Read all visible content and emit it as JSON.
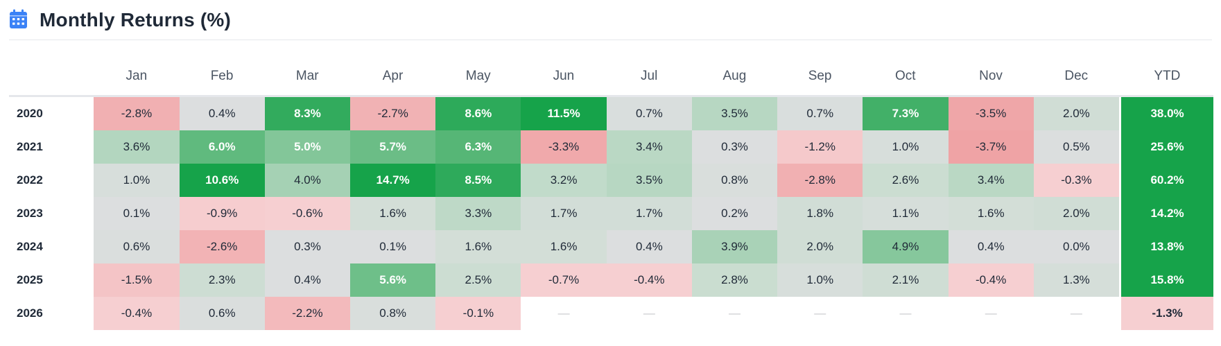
{
  "header": {
    "title": "Monthly Returns (%)",
    "icon": "calendar-icon",
    "icon_color": "#3b82f6"
  },
  "colors": {
    "green_strong": "#16a34a",
    "green_mid": "#4fb471",
    "green_light": "#c8ddcf",
    "neutral": "#dcdedf",
    "red_light": "#f6cfd1",
    "red_mid": "#ee9ea0",
    "text_dark": "#1f2937",
    "text_white": "#ffffff",
    "empty_mark": "—"
  },
  "chart_data": {
    "type": "heatmap",
    "title": "Monthly Returns (%)",
    "unit": "%",
    "columns": [
      "Jan",
      "Feb",
      "Mar",
      "Apr",
      "May",
      "Jun",
      "Jul",
      "Aug",
      "Sep",
      "Oct",
      "Nov",
      "Dec"
    ],
    "ytd_label": "YTD",
    "rows": [
      {
        "year": "2020",
        "values": [
          -2.8,
          0.4,
          8.3,
          -2.7,
          8.6,
          11.5,
          0.7,
          3.5,
          0.7,
          7.3,
          -3.5,
          2.0
        ],
        "ytd": 38.0
      },
      {
        "year": "2021",
        "values": [
          3.6,
          6.0,
          5.0,
          5.7,
          6.3,
          -3.3,
          3.4,
          0.3,
          -1.2,
          1.0,
          -3.7,
          0.5
        ],
        "ytd": 25.6
      },
      {
        "year": "2022",
        "values": [
          1.0,
          10.6,
          4.0,
          14.7,
          8.5,
          3.2,
          3.5,
          0.8,
          -2.8,
          2.6,
          3.4,
          -0.3
        ],
        "ytd": 60.2
      },
      {
        "year": "2023",
        "values": [
          0.1,
          -0.9,
          -0.6,
          1.6,
          3.3,
          1.7,
          1.7,
          0.2,
          1.8,
          1.1,
          1.6,
          2.0
        ],
        "ytd": 14.2
      },
      {
        "year": "2024",
        "values": [
          0.6,
          -2.6,
          0.3,
          0.1,
          1.6,
          1.6,
          0.4,
          3.9,
          2.0,
          4.9,
          0.4,
          0.0
        ],
        "ytd": 13.8
      },
      {
        "year": "2025",
        "values": [
          -1.5,
          2.3,
          0.4,
          5.6,
          2.5,
          -0.7,
          -0.4,
          2.8,
          1.0,
          2.1,
          -0.4,
          1.3
        ],
        "ytd": 15.8
      },
      {
        "year": "2026",
        "values": [
          -0.4,
          0.6,
          -2.2,
          0.8,
          -0.1,
          null,
          null,
          null,
          null,
          null,
          null,
          null
        ],
        "ytd": -1.3
      }
    ]
  }
}
